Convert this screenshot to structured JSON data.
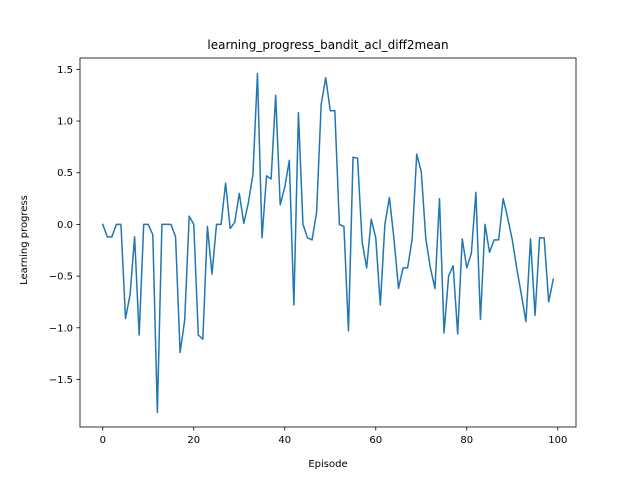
{
  "chart_data": {
    "type": "line",
    "title": "learning_progress_bandit_acl_diff2mean",
    "xlabel": "Episode",
    "ylabel": "Learning progress",
    "xlim": [
      -5,
      104
    ],
    "ylim": [
      -1.96,
      1.61
    ],
    "xticks": [
      0,
      20,
      40,
      60,
      80,
      100
    ],
    "yticks": [
      -1.5,
      -1.0,
      -0.5,
      0.0,
      0.5,
      1.0,
      1.5
    ],
    "xtick_labels": [
      "0",
      "20",
      "40",
      "60",
      "80",
      "100"
    ],
    "ytick_labels": [
      "−1.5",
      "−1.0",
      "−0.5",
      "0.0",
      "0.5",
      "1.0",
      "1.5"
    ],
    "grid": false,
    "line_color": "#1f77b4",
    "series": [
      {
        "x": [
          0,
          1,
          2,
          3,
          4,
          5,
          6,
          7,
          8,
          9,
          10,
          11,
          12,
          13,
          14,
          15,
          16,
          17,
          18,
          19,
          20,
          21,
          22,
          23,
          24,
          25,
          26,
          27,
          28,
          29,
          30,
          31,
          32,
          33,
          34,
          35,
          36,
          37,
          38,
          39,
          40,
          41,
          42,
          43,
          44,
          45,
          46,
          47,
          48,
          49,
          50,
          51,
          52,
          53,
          54,
          55,
          56,
          57,
          58,
          59,
          60,
          61,
          62,
          63,
          64,
          65,
          66,
          67,
          68,
          69,
          70,
          71,
          72,
          73,
          74,
          75,
          76,
          77,
          78,
          79,
          80,
          81,
          82,
          83,
          84,
          85,
          86,
          87,
          88,
          89,
          90,
          91,
          92,
          93,
          94,
          95,
          96,
          97,
          98,
          99
        ],
        "values": [
          0.0,
          -0.12,
          -0.12,
          0.0,
          0.0,
          -0.91,
          -0.68,
          -0.12,
          -1.07,
          0.0,
          0.0,
          -0.1,
          -1.82,
          0.0,
          0.0,
          0.0,
          -0.12,
          -1.24,
          -0.93,
          0.08,
          0.0,
          -1.07,
          -1.11,
          -0.02,
          -0.48,
          0.0,
          0.0,
          0.4,
          -0.04,
          0.02,
          0.3,
          0.01,
          0.21,
          0.48,
          1.46,
          -0.13,
          0.47,
          0.44,
          1.25,
          0.19,
          0.36,
          0.62,
          -0.78,
          1.08,
          0.0,
          -0.13,
          -0.15,
          0.12,
          1.16,
          1.42,
          1.1,
          1.1,
          0.0,
          -0.02,
          -1.03,
          0.65,
          0.64,
          -0.17,
          -0.42,
          0.05,
          -0.13,
          -0.78,
          0.0,
          0.26,
          -0.14,
          -0.62,
          -0.42,
          -0.42,
          -0.14,
          0.68,
          0.51,
          -0.14,
          -0.42,
          -0.62,
          0.25,
          -1.05,
          -0.5,
          -0.4,
          -1.06,
          -0.14,
          -0.42,
          -0.28,
          0.31,
          -0.92,
          0.0,
          -0.27,
          -0.15,
          -0.15,
          0.25,
          0.06,
          -0.15,
          -0.43,
          -0.68,
          -0.94,
          -0.14,
          -0.88,
          -0.13,
          -0.13,
          -0.75,
          -0.53
        ]
      }
    ]
  }
}
